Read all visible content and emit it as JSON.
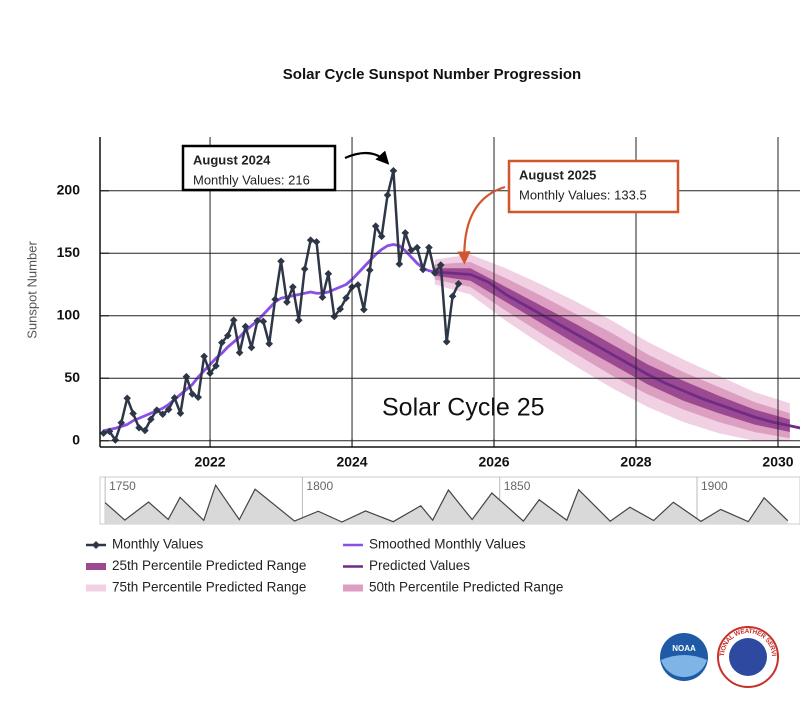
{
  "chart_data": [
    {
      "type": "line",
      "title": "Solar Cycle Sunspot Number Progression",
      "y_label": "Sunspot Number",
      "xlim": [
        2020.45,
        2030.31
      ],
      "xticks": [
        2022,
        2024,
        2026,
        2028,
        2030
      ],
      "ylim": [
        -5,
        243
      ],
      "yticks": [
        0,
        50,
        100,
        150,
        200
      ],
      "grid": true,
      "series": [
        {
          "name": "Monthly Values",
          "type": "line",
          "marker": "diamond",
          "color": "#2e3748",
          "x": [
            "2020-07",
            "2020-08",
            "2020-09",
            "2020-10",
            "2020-11",
            "2020-12",
            "2021-01",
            "2021-02",
            "2021-03",
            "2021-04",
            "2021-05",
            "2021-06",
            "2021-07",
            "2021-08",
            "2021-09",
            "2021-10",
            "2021-11",
            "2021-12",
            "2022-01",
            "2022-02",
            "2022-03",
            "2022-04",
            "2022-05",
            "2022-06",
            "2022-07",
            "2022-08",
            "2022-09",
            "2022-10",
            "2022-11",
            "2022-12",
            "2023-01",
            "2023-02",
            "2023-03",
            "2023-04",
            "2023-05",
            "2023-06",
            "2023-07",
            "2023-08",
            "2023-09",
            "2023-10",
            "2023-11",
            "2023-12",
            "2024-01",
            "2024-02",
            "2024-03",
            "2024-04",
            "2024-05",
            "2024-06",
            "2024-07",
            "2024-08",
            "2024-09",
            "2024-10",
            "2024-11",
            "2024-12",
            "2025-01",
            "2025-02",
            "2025-03",
            "2025-04",
            "2025-05",
            "2025-06",
            "2025-07"
          ],
          "values": [
            6.1,
            7.5,
            0.6,
            14.4,
            34.0,
            21.8,
            10.4,
            8.2,
            17.2,
            24.5,
            21.2,
            25.0,
            34.3,
            22.0,
            51.3,
            37.4,
            34.8,
            67.5,
            54.0,
            59.9,
            78.5,
            84.1,
            96.5,
            70.5,
            91.4,
            74.6,
            96.0,
            95.5,
            77.6,
            113.1,
            143.6,
            110.9,
            123.0,
            96.4,
            137.4,
            160.5,
            159.1,
            114.8,
            133.6,
            99.4,
            105.4,
            114.2,
            123.0,
            124.7,
            104.9,
            136.5,
            171.7,
            163.5,
            196.5,
            216.0,
            141.4,
            166.3,
            152.5,
            154.5,
            137.0,
            154.6,
            134.2,
            140.6,
            79.2,
            115.6,
            125.6
          ]
        },
        {
          "name": "25th Percentile Predicted Range",
          "type": "band",
          "color": "#9b4a92",
          "x": [
            "2025-03",
            "2025-09",
            "2026-03",
            "2026-09",
            "2027-03",
            "2027-09",
            "2028-03",
            "2028-09",
            "2029-03",
            "2029-09",
            "2030-03"
          ],
          "lower": [
            132,
            128,
            111,
            94,
            77,
            61,
            45,
            32,
            22,
            13,
            7
          ],
          "upper": [
            138,
            138,
            123,
            108,
            93,
            77,
            61,
            48,
            36,
            25,
            17
          ]
        },
        {
          "name": "75th Percentile Predicted Range",
          "type": "band",
          "color": "#f0d0e2",
          "x": [
            "2025-03",
            "2025-09",
            "2026-03",
            "2026-09",
            "2027-03",
            "2027-09",
            "2028-03",
            "2028-09",
            "2029-03",
            "2029-09",
            "2030-03"
          ],
          "lower": [
            125,
            117,
            96,
            77,
            59,
            42,
            27,
            15,
            6,
            0,
            0
          ],
          "upper": [
            145,
            149,
            138,
            125,
            111,
            96,
            79,
            65,
            52,
            39,
            30
          ]
        },
        {
          "name": "Smoothed Monthly Values",
          "type": "line",
          "color": "#8a4fe6",
          "x": [
            "2020-07",
            "2020-08",
            "2020-09",
            "2020-10",
            "2020-11",
            "2020-12",
            "2021-01",
            "2021-02",
            "2021-03",
            "2021-04",
            "2021-05",
            "2021-06",
            "2021-07",
            "2021-08",
            "2021-09",
            "2021-10",
            "2021-11",
            "2021-12",
            "2022-01",
            "2022-02",
            "2022-03",
            "2022-04",
            "2022-05",
            "2022-06",
            "2022-07",
            "2022-08",
            "2022-09",
            "2022-10",
            "2022-11",
            "2022-12",
            "2023-01",
            "2023-02",
            "2023-03",
            "2023-04",
            "2023-05",
            "2023-06",
            "2023-07",
            "2023-08",
            "2023-09",
            "2023-10",
            "2023-11",
            "2023-12",
            "2024-01",
            "2024-02",
            "2024-03",
            "2024-04",
            "2024-05",
            "2024-06",
            "2024-07",
            "2024-08",
            "2024-09",
            "2024-10",
            "2024-11",
            "2024-12",
            "2025-01",
            "2025-02",
            "2025-03"
          ],
          "values": [
            8,
            9,
            10,
            11.5,
            13,
            16,
            18,
            20,
            22,
            24,
            26,
            29,
            33,
            37,
            41,
            45,
            51,
            56,
            61,
            66,
            70,
            75,
            79,
            83,
            88,
            92,
            96,
            101,
            106,
            111,
            114,
            115,
            116,
            117,
            118,
            119,
            118,
            118,
            119,
            121,
            123,
            125,
            129,
            134,
            139,
            144,
            149,
            153,
            156,
            157,
            156,
            152,
            147,
            142,
            138,
            136,
            135
          ]
        },
        {
          "name": "Predicted Values",
          "type": "line",
          "color": "#6f2c86",
          "x": [
            "2025-03",
            "2025-06",
            "2025-09",
            "2025-12",
            "2026-03",
            "2026-06",
            "2026-09",
            "2026-12",
            "2027-03",
            "2027-06",
            "2027-09",
            "2027-12",
            "2028-03",
            "2028-06",
            "2028-09",
            "2028-12",
            "2029-03",
            "2029-06",
            "2029-09",
            "2029-12",
            "2030-03",
            "2030-06"
          ],
          "values": [
            135,
            134,
            133,
            127,
            117,
            109,
            101,
            93,
            85,
            77,
            69,
            61,
            53,
            46,
            40,
            34,
            29,
            24,
            19,
            15,
            12,
            9
          ]
        },
        {
          "name": "50th Percentile Predicted Range",
          "type": "band",
          "color": "#dc9fc2",
          "x": [
            "2025-03",
            "2025-09",
            "2026-03",
            "2026-09",
            "2027-03",
            "2027-09",
            "2028-03",
            "2028-09",
            "2029-03",
            "2029-09",
            "2030-03"
          ],
          "lower": [
            129,
            123,
            104,
            86,
            69,
            52,
            37,
            25,
            15,
            7,
            2
          ],
          "upper": [
            141,
            143,
            130,
            116,
            101,
            86,
            69,
            55,
            43,
            31,
            22
          ]
        }
      ],
      "annotations": [
        {
          "title": "August 2024",
          "text": "Monthly Values: 216",
          "x": "2024-08",
          "y": 216,
          "color": "#000000"
        },
        {
          "title": "August 2025",
          "text": "Monthly Values: 133.5",
          "x": "2025-08",
          "y": 133.5,
          "color": "#d2562b"
        }
      ],
      "label": "Solar Cycle 25"
    },
    {
      "type": "area",
      "color": "#444444",
      "fill": "#d9d9d9",
      "xlim": [
        1748.7,
        1926.1
      ],
      "xticks": [
        1750,
        1800,
        1850,
        1900
      ],
      "ylim": [
        0,
        280
      ],
      "x": [
        1750,
        1755,
        1761,
        1766,
        1769,
        1775,
        1778,
        1784,
        1788,
        1798,
        1804,
        1810,
        1816,
        1823,
        1830,
        1833,
        1837,
        1843,
        1848,
        1856,
        1860,
        1867,
        1870,
        1878,
        1883,
        1889,
        1894,
        1901,
        1906,
        1913,
        1917,
        1923
      ],
      "values": [
        139,
        14.0,
        143.2,
        18.6,
        176.8,
        11.7,
        264.3,
        17.0,
        235.8,
        6.8,
        77.2,
        0,
        79.4,
        2.2,
        116.7,
        13.4,
        229.6,
        17.5,
        207.8,
        6.6,
        159.8,
        12.4,
        232.0,
        5.7,
        106.1,
        10.4,
        142.0,
        4.6,
        90.4,
        2.3,
        173.3,
        9.7
      ]
    }
  ],
  "logos": {
    "noaa": "NOAA",
    "nws": "NATIONAL WEATHER SERVICE"
  }
}
